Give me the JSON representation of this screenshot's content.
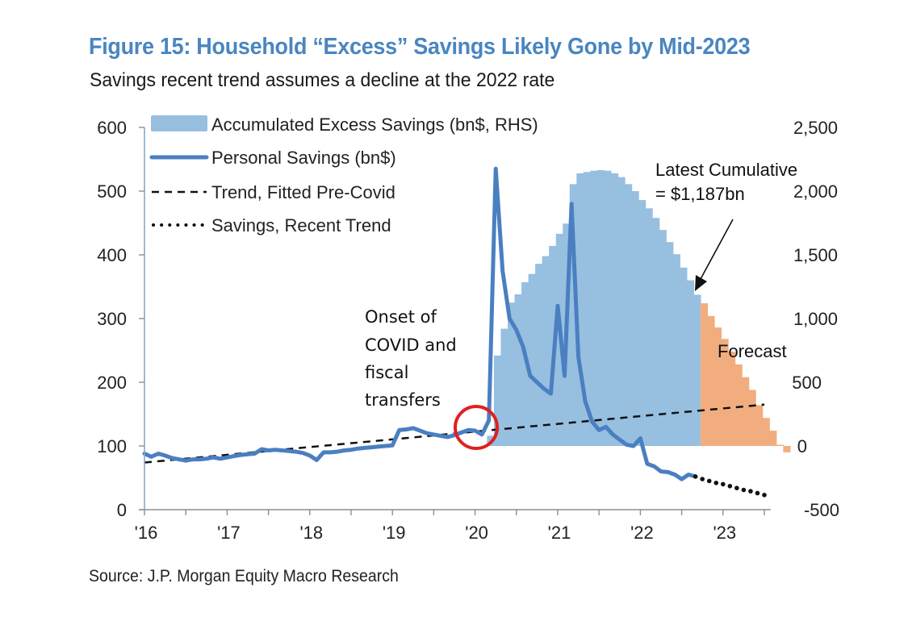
{
  "header": {
    "title": "Figure 15: Household “Excess” Savings Likely Gone by Mid-2023",
    "subtitle": "Savings recent trend assumes a decline at the 2022 rate"
  },
  "footer": {
    "source": "Source: J.P. Morgan Equity Macro Research"
  },
  "colors": {
    "title": "#4a86c0",
    "excess_bars": "#97bfe0",
    "forecast_bars": "#f2ad7f",
    "personal_savings_line": "#4a7fc1",
    "axis": "#8aa6c8",
    "circle": "#e02020"
  },
  "chart_data": {
    "type": "bar+line",
    "title": "Figure 15: Household “Excess” Savings Likely Gone by Mid-2023",
    "subtitle": "Savings recent trend assumes a decline at the 2022 rate",
    "x_tick_labels": [
      "'16",
      "'17",
      "'18",
      "'19",
      "'20",
      "'21",
      "'22",
      "'23"
    ],
    "x_start": "2016-01",
    "x_end": "2023-08",
    "y_left": {
      "label": "bn$",
      "range": [
        0,
        600
      ],
      "ticks": [
        0,
        100,
        200,
        300,
        400,
        500,
        600
      ],
      "tick_labels": [
        "0",
        "100",
        "200",
        "300",
        "400",
        "500",
        "600"
      ]
    },
    "y_right": {
      "label": "bn$",
      "range": [
        -500,
        2500
      ],
      "ticks": [
        -500,
        0,
        500,
        1000,
        1500,
        2000,
        2500
      ],
      "tick_labels": [
        "-500",
        "0",
        "500",
        "1,000",
        "1,500",
        "2,000",
        "2,500"
      ]
    },
    "legend": {
      "placement": "top-left",
      "entries": [
        {
          "label": "Accumulated Excess Savings (bn$, RHS)",
          "kind": "bar"
        },
        {
          "label": "Personal Savings (bn$)",
          "kind": "line"
        },
        {
          "label": "Trend, Fitted Pre-Covid",
          "kind": "dashed"
        },
        {
          "label": "Savings, Recent Trend",
          "kind": "dotted"
        }
      ]
    },
    "series": [
      {
        "name": "Personal Savings (bn$)",
        "axis": "left",
        "start": "2016-01",
        "values": [
          88,
          83,
          88,
          85,
          81,
          79,
          77,
          79,
          79,
          80,
          82,
          80,
          82,
          84,
          86,
          87,
          88,
          95,
          93,
          94,
          93,
          92,
          91,
          89,
          85,
          78,
          90,
          90,
          91,
          93,
          94,
          96,
          97,
          98,
          99,
          100,
          101,
          125,
          126,
          128,
          124,
          120,
          118,
          116,
          114,
          117,
          121,
          125,
          124,
          118,
          140,
          535,
          375,
          300,
          282,
          255,
          210,
          200,
          190,
          182,
          320,
          210,
          480,
          240,
          170,
          138,
          125,
          130,
          118,
          110,
          102,
          100,
          112,
          72,
          68,
          60,
          59,
          55,
          48,
          55,
          52
        ]
      },
      {
        "name": "Savings, Recent Trend",
        "axis": "left",
        "start": "2022-09",
        "values": [
          52,
          48,
          45,
          42,
          40,
          37,
          34,
          31,
          29,
          26,
          23
        ]
      },
      {
        "name": "Trend, Fitted Pre-Covid",
        "axis": "left",
        "start": "2016-01",
        "end": "2023-07",
        "values_endpoints": [
          74,
          165
        ]
      },
      {
        "name": "Accumulated Excess Savings (bn$, RHS)",
        "axis": "right",
        "start": "2020-03",
        "values": [
          80,
          710,
          920,
          1125,
          1190,
          1285,
          1350,
          1430,
          1490,
          1570,
          1665,
          1745,
          2055,
          2140,
          2150,
          2160,
          2165,
          2160,
          2140,
          2110,
          2055,
          2000,
          1930,
          1865,
          1790,
          1695,
          1600,
          1505,
          1400,
          1300,
          1187
        ]
      },
      {
        "name": "Forecast",
        "axis": "right",
        "start": "2022-10",
        "values": [
          1120,
          1020,
          930,
          840,
          740,
          640,
          540,
          440,
          320,
          220,
          120,
          10,
          -50
        ]
      }
    ],
    "annotations": [
      {
        "text_lines": [
          "Onset of",
          "COVID and",
          "fiscal",
          "transfers"
        ],
        "target": "2020-01",
        "marker": "red-circle"
      },
      {
        "text_lines": [
          "Latest Cumulative",
          "= $1,187bn"
        ],
        "target": "2022-09",
        "marker": "arrow"
      },
      {
        "text_lines": [
          "Forecast"
        ],
        "target": "forecast-bars"
      }
    ]
  }
}
